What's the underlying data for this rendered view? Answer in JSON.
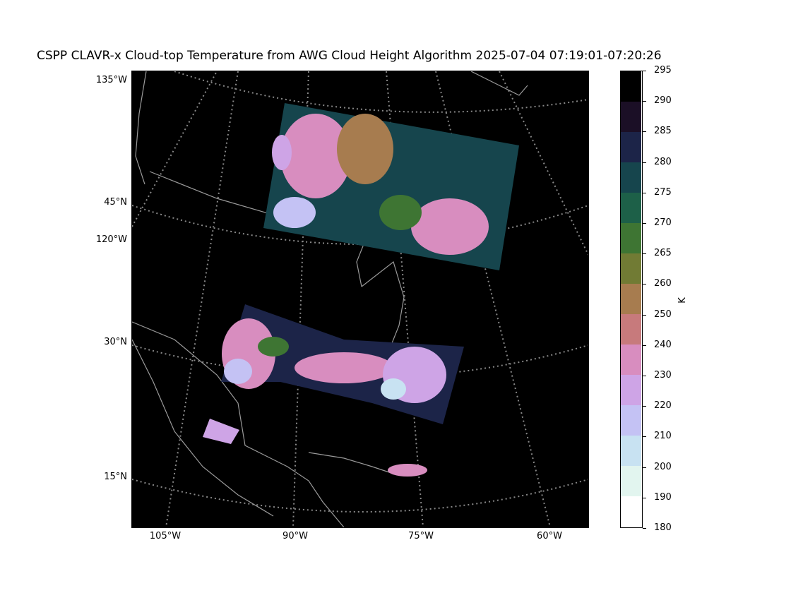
{
  "title": "CSPP CLAVR-x Cloud-top Temperature from AWG Cloud Height Algorithm 2025-07-04 07:19:01-07:20:26",
  "map": {
    "lat_labels": [
      "135°W",
      "45°N",
      "120°W",
      "30°N",
      "15°N"
    ],
    "lon_labels": [
      "105°W",
      "90°W",
      "75°W",
      "60°W"
    ],
    "background": "#000000",
    "gridline_color": "#888888",
    "coastline_color": "#9a9a9a"
  },
  "colorbar": {
    "unit": "K",
    "ticks": [
      "295",
      "290",
      "285",
      "280",
      "275",
      "270",
      "265",
      "260",
      "250",
      "240",
      "230",
      "220",
      "210",
      "200",
      "190",
      "180"
    ],
    "colors": [
      "#000000",
      "#1b0f26",
      "#1c2448",
      "#16454d",
      "#1d6048",
      "#3e7533",
      "#717b34",
      "#a77c4f",
      "#c77a7c",
      "#d88dbf",
      "#cea4e6",
      "#c4c2f4",
      "#c8e2f2",
      "#e2f5ef",
      "#ffffff"
    ]
  }
}
